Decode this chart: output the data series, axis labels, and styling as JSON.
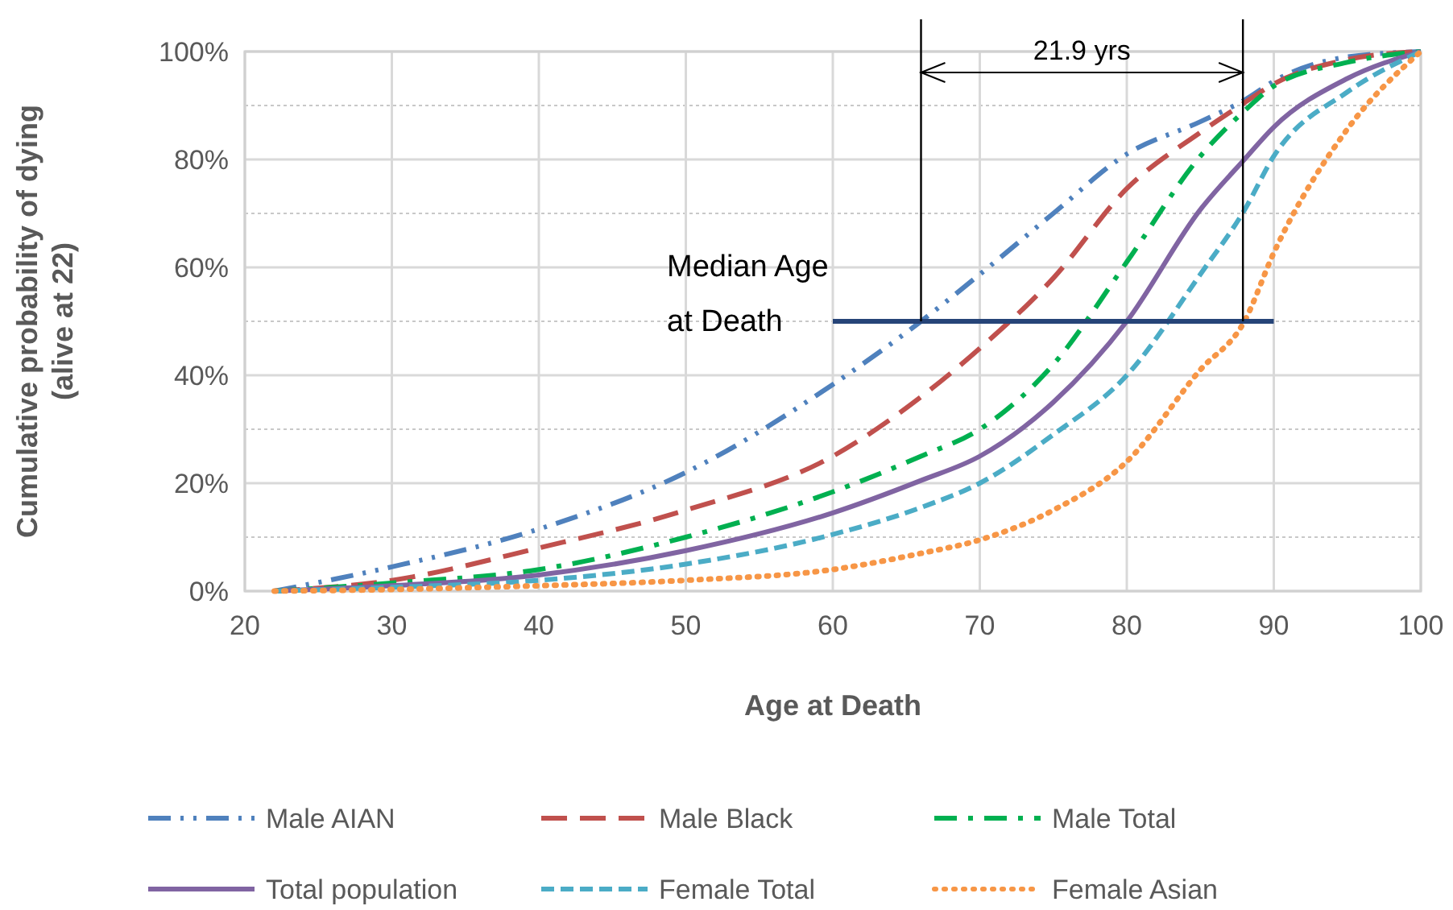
{
  "chart_data": {
    "type": "line",
    "xlabel": "Age at Death",
    "ylabel": "Cumulative probability of dying\n(alive at 22)",
    "xlim": [
      20,
      100
    ],
    "xticks": [
      20,
      30,
      40,
      50,
      60,
      70,
      80,
      90,
      100
    ],
    "ylim": [
      0,
      100
    ],
    "yticks": [
      {
        "value": 0,
        "label": "0%"
      },
      {
        "value": 20,
        "label": "20%"
      },
      {
        "value": 40,
        "label": "40%"
      },
      {
        "value": 60,
        "label": "60%"
      },
      {
        "value": 80,
        "label": "80%"
      },
      {
        "value": 100,
        "label": "100%"
      }
    ],
    "grid": true,
    "legend": "bottom",
    "x": [
      22,
      30,
      40,
      50,
      60,
      66,
      70,
      75,
      80,
      85,
      88,
      90,
      95,
      100
    ],
    "series": [
      {
        "name": "Male AIAN",
        "color": "#4f81bd",
        "line_style": "dashed",
        "values": [
          0,
          4.5,
          11.5,
          22,
          38.3,
          50,
          58.7,
          70,
          81,
          87,
          91,
          94.5,
          99,
          100
        ]
      },
      {
        "name": "Male Black",
        "color": "#c0504d",
        "line_style": "dashed",
        "values": [
          0,
          2,
          8,
          15,
          25,
          36,
          45,
          58,
          74.6,
          85,
          90.5,
          94,
          98.5,
          100
        ]
      },
      {
        "name": "Male Total",
        "color": "#00b050",
        "line_style": "dashed",
        "values": [
          0,
          1.5,
          4,
          10,
          18.4,
          25,
          30,
          42,
          61,
          80.6,
          89,
          93.6,
          98,
          100
        ]
      },
      {
        "name": "Total population",
        "color": "#8064a2",
        "line_style": "solid",
        "values": [
          0,
          1,
          3,
          7.5,
          14.5,
          20.5,
          25,
          35,
          50,
          70.7,
          80,
          86,
          95,
          100
        ]
      },
      {
        "name": "Female Total",
        "color": "#4bacc6",
        "line_style": "dashed",
        "values": [
          0,
          0.7,
          2,
          5,
          10.5,
          15.5,
          20,
          29,
          40,
          58.7,
          70.6,
          80.6,
          92.5,
          100
        ]
      },
      {
        "name": "Female Asian",
        "color": "#f79646",
        "line_style": "dotted",
        "values": [
          0,
          0.3,
          1,
          2,
          4,
          7,
          9.5,
          15,
          24,
          41,
          50,
          62.7,
          85.6,
          100
        ]
      },
      {
        "type": "line",
        "color": "#264478",
        "line_style": "solid",
        "x": [
          60,
          90
        ],
        "values": [
          50,
          50
        ]
      }
    ],
    "ref_lines": [
      {
        "axis": "x",
        "value": 66,
        "color": "#000000"
      },
      {
        "axis": "x",
        "value": 87.9,
        "color": "#000000"
      }
    ],
    "annotations": [
      {
        "text": "Median Age at Death",
        "x": 60,
        "y": 50
      },
      "21.9 yrs"
    ]
  }
}
